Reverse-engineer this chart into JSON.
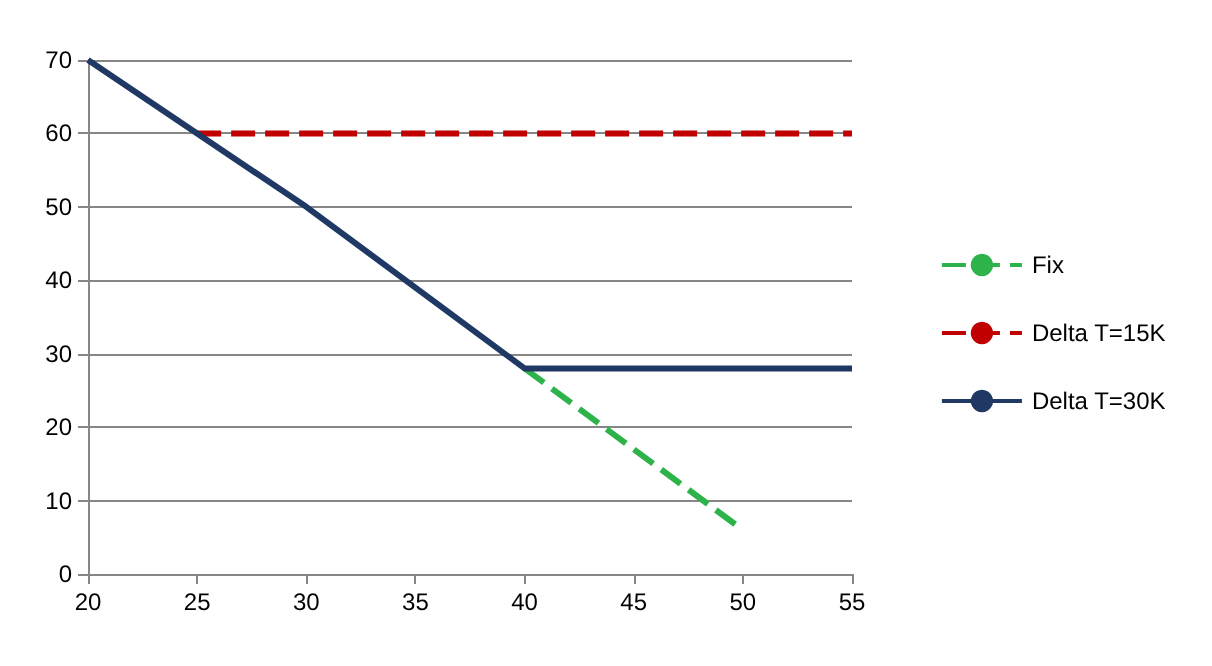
{
  "chart_data": {
    "type": "line",
    "xlim": [
      20,
      55
    ],
    "xticks": [
      20,
      25,
      30,
      35,
      40,
      45,
      50,
      55
    ],
    "ylim": [
      0,
      70
    ],
    "yticks": [
      0,
      10,
      20,
      30,
      40,
      50,
      60,
      70
    ],
    "grid": "y",
    "legend": "right",
    "marker": "none",
    "series": [
      {
        "name": "Fix",
        "color": "#2eb34a",
        "line_style": "dashed",
        "x": [
          40,
          50
        ],
        "values": [
          28,
          6
        ]
      },
      {
        "name": "Delta T=15K",
        "color": "#c00000",
        "line_style": "dashed",
        "x": [
          25,
          55
        ],
        "values": [
          60,
          60
        ]
      },
      {
        "name": "Delta T=30K",
        "color": "#1f3864",
        "line_style": "solid",
        "x": [
          20,
          30,
          40,
          55
        ],
        "values": [
          70,
          50,
          28,
          28
        ]
      }
    ]
  }
}
